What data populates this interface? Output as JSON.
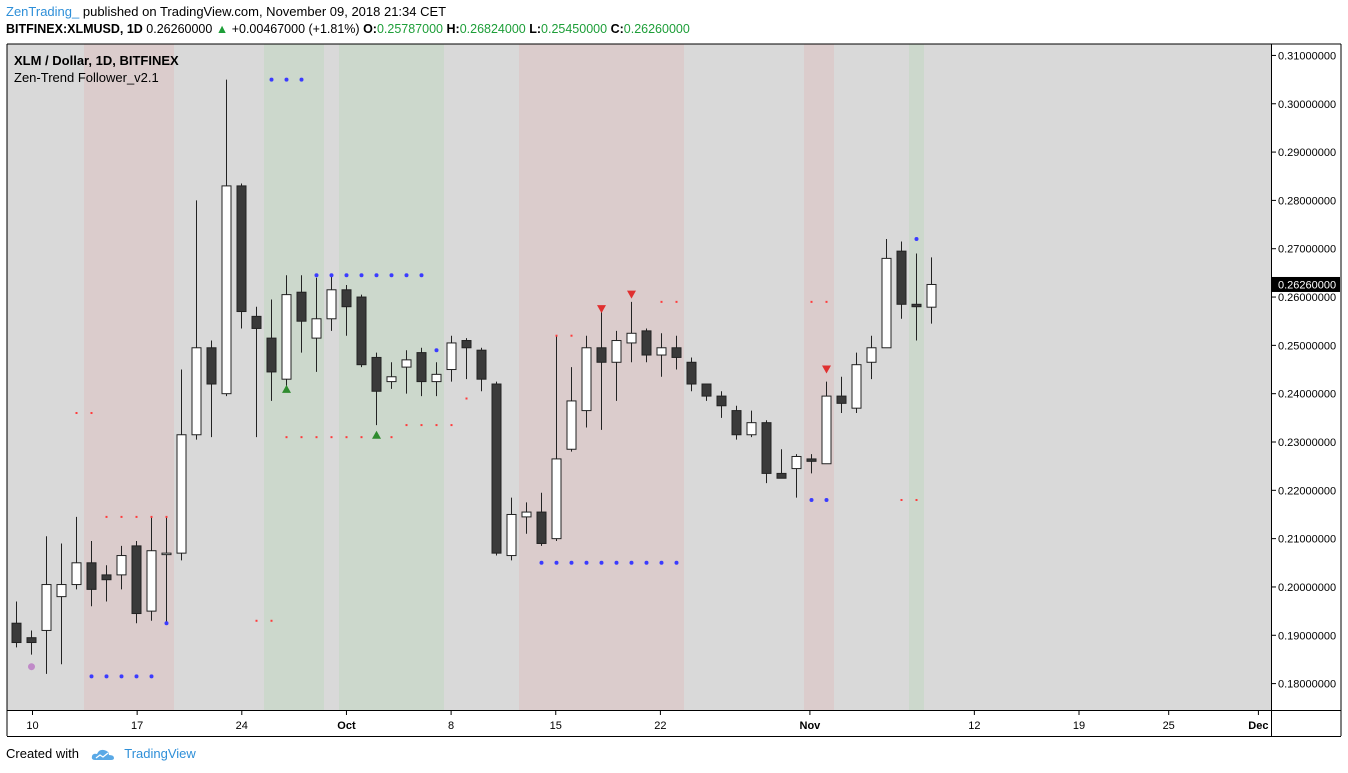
{
  "header": {
    "author": "ZenTrading_",
    "published_text": "published on TradingView.com, November 09, 2018 21:34 CET",
    "symbol": "BITFINEX:XLMUSD, 1D",
    "last": "0.26260000",
    "change": "+0.00467000 (+1.81%)",
    "o_label": "O:",
    "o_value": "0.25787000",
    "h_label": "H:",
    "h_value": "0.26824000",
    "l_label": "L:",
    "l_value": "0.25450000",
    "c_label": "C:",
    "c_value": "0.26260000"
  },
  "legend": {
    "title": "XLM / Dollar, 1D, BITFINEX",
    "indicator": "Zen-Trend Follower_v2.1"
  },
  "footer": {
    "created_with": "Created with",
    "brand": "TradingView"
  },
  "colors": {
    "background": "#d9d9d9",
    "red_zone": "#dbcccc",
    "green_zone": "#ccd8cc",
    "candle_up": "#ffffff",
    "candle_down": "#3a3a3a",
    "blue_dot": "#3b3bff",
    "red_dot": "#ff3b3b",
    "arrow_up": "#2e8b2e",
    "arrow_down": "#e03030",
    "price_label_bg": "#000000"
  },
  "chart_data": {
    "type": "candlestick",
    "title": "XLM / Dollar, 1D, BITFINEX",
    "ylim": [
      0.175,
      0.312
    ],
    "y_ticks": [
      "0.18000000",
      "0.19000000",
      "0.20000000",
      "0.21000000",
      "0.22000000",
      "0.23000000",
      "0.24000000",
      "0.25000000",
      "0.26000000",
      "0.27000000",
      "0.28000000",
      "0.29000000",
      "0.30000000",
      "0.31000000"
    ],
    "last_price_label": "0.26260000",
    "x_ticks": [
      {
        "label": "10",
        "day": 0
      },
      {
        "label": "17",
        "day": 7
      },
      {
        "label": "24",
        "day": 14
      },
      {
        "label": "Oct",
        "day": 21
      },
      {
        "label": "8",
        "day": 28
      },
      {
        "label": "15",
        "day": 35
      },
      {
        "label": "22",
        "day": 42
      },
      {
        "label": "Nov",
        "day": 52
      },
      {
        "label": "12",
        "day": 63
      },
      {
        "label": "19",
        "day": 70
      },
      {
        "label": "25",
        "day": 76
      },
      {
        "label": "Dec",
        "day": 82
      }
    ],
    "candles": [
      {
        "d": "Sep 09",
        "o": 0.1925,
        "h": 0.197,
        "l": 0.1875,
        "c": 0.1885
      },
      {
        "d": "Sep 10",
        "o": 0.1895,
        "h": 0.191,
        "l": 0.186,
        "c": 0.1885
      },
      {
        "d": "Sep 11",
        "o": 0.191,
        "h": 0.2105,
        "l": 0.182,
        "c": 0.2005
      },
      {
        "d": "Sep 12",
        "o": 0.198,
        "h": 0.209,
        "l": 0.184,
        "c": 0.2005
      },
      {
        "d": "Sep 13",
        "o": 0.2005,
        "h": 0.2145,
        "l": 0.1995,
        "c": 0.205
      },
      {
        "d": "Sep 14",
        "o": 0.205,
        "h": 0.2095,
        "l": 0.196,
        "c": 0.1995
      },
      {
        "d": "Sep 15",
        "o": 0.2025,
        "h": 0.2045,
        "l": 0.197,
        "c": 0.2015
      },
      {
        "d": "Sep 16",
        "o": 0.2025,
        "h": 0.2085,
        "l": 0.1995,
        "c": 0.2065
      },
      {
        "d": "Sep 17",
        "o": 0.2085,
        "h": 0.2095,
        "l": 0.1925,
        "c": 0.1945
      },
      {
        "d": "Sep 18",
        "o": 0.195,
        "h": 0.2145,
        "l": 0.193,
        "c": 0.2075
      },
      {
        "d": "Sep 19",
        "o": 0.207,
        "h": 0.2145,
        "l": 0.1925,
        "c": 0.207
      },
      {
        "d": "Sep 20",
        "o": 0.207,
        "h": 0.245,
        "l": 0.2055,
        "c": 0.2315
      },
      {
        "d": "Sep 21",
        "o": 0.2315,
        "h": 0.28,
        "l": 0.2305,
        "c": 0.2495
      },
      {
        "d": "Sep 22",
        "o": 0.2495,
        "h": 0.251,
        "l": 0.231,
        "c": 0.242
      },
      {
        "d": "Sep 23",
        "o": 0.24,
        "h": 0.305,
        "l": 0.2395,
        "c": 0.283
      },
      {
        "d": "Sep 24",
        "o": 0.283,
        "h": 0.2835,
        "l": 0.2535,
        "c": 0.257
      },
      {
        "d": "Sep 25",
        "o": 0.256,
        "h": 0.258,
        "l": 0.231,
        "c": 0.2535
      },
      {
        "d": "Sep 26",
        "o": 0.2515,
        "h": 0.2595,
        "l": 0.2385,
        "c": 0.2445
      },
      {
        "d": "Sep 27",
        "o": 0.243,
        "h": 0.2645,
        "l": 0.241,
        "c": 0.2605
      },
      {
        "d": "Sep 28",
        "o": 0.261,
        "h": 0.2645,
        "l": 0.2485,
        "c": 0.255
      },
      {
        "d": "Sep 29",
        "o": 0.2515,
        "h": 0.264,
        "l": 0.2445,
        "c": 0.2555
      },
      {
        "d": "Sep 30",
        "o": 0.2555,
        "h": 0.2645,
        "l": 0.253,
        "c": 0.2615
      },
      {
        "d": "Oct 01",
        "o": 0.2615,
        "h": 0.2625,
        "l": 0.252,
        "c": 0.258
      },
      {
        "d": "Oct 02",
        "o": 0.26,
        "h": 0.2605,
        "l": 0.2455,
        "c": 0.246
      },
      {
        "d": "Oct 03",
        "o": 0.2475,
        "h": 0.2485,
        "l": 0.2335,
        "c": 0.2405
      },
      {
        "d": "Oct 04",
        "o": 0.2425,
        "h": 0.2465,
        "l": 0.241,
        "c": 0.2435
      },
      {
        "d": "Oct 05",
        "o": 0.2455,
        "h": 0.249,
        "l": 0.24,
        "c": 0.247
      },
      {
        "d": "Oct 06",
        "o": 0.2485,
        "h": 0.2495,
        "l": 0.2395,
        "c": 0.2425
      },
      {
        "d": "Oct 07",
        "o": 0.2425,
        "h": 0.2465,
        "l": 0.2395,
        "c": 0.244
      },
      {
        "d": "Oct 08",
        "o": 0.245,
        "h": 0.252,
        "l": 0.2425,
        "c": 0.2505
      },
      {
        "d": "Oct 09",
        "o": 0.251,
        "h": 0.2515,
        "l": 0.243,
        "c": 0.2495
      },
      {
        "d": "Oct 10",
        "o": 0.249,
        "h": 0.2495,
        "l": 0.2405,
        "c": 0.243
      },
      {
        "d": "Oct 11",
        "o": 0.242,
        "h": 0.2425,
        "l": 0.2065,
        "c": 0.207
      },
      {
        "d": "Oct 12",
        "o": 0.2065,
        "h": 0.2185,
        "l": 0.2055,
        "c": 0.215
      },
      {
        "d": "Oct 13",
        "o": 0.2145,
        "h": 0.2175,
        "l": 0.211,
        "c": 0.2155
      },
      {
        "d": "Oct 14",
        "o": 0.2155,
        "h": 0.2195,
        "l": 0.2085,
        "c": 0.209
      },
      {
        "d": "Oct 15",
        "o": 0.21,
        "h": 0.252,
        "l": 0.2095,
        "c": 0.2265
      },
      {
        "d": "Oct 16",
        "o": 0.2285,
        "h": 0.2455,
        "l": 0.228,
        "c": 0.2385
      },
      {
        "d": "Oct 17",
        "o": 0.2365,
        "h": 0.252,
        "l": 0.233,
        "c": 0.2495
      },
      {
        "d": "Oct 18",
        "o": 0.2495,
        "h": 0.2575,
        "l": 0.2325,
        "c": 0.2465
      },
      {
        "d": "Oct 19",
        "o": 0.2465,
        "h": 0.253,
        "l": 0.2385,
        "c": 0.251
      },
      {
        "d": "Oct 20",
        "o": 0.2505,
        "h": 0.259,
        "l": 0.2465,
        "c": 0.2525
      },
      {
        "d": "Oct 21",
        "o": 0.253,
        "h": 0.2535,
        "l": 0.2465,
        "c": 0.248
      },
      {
        "d": "Oct 22",
        "o": 0.248,
        "h": 0.2525,
        "l": 0.2435,
        "c": 0.2495
      },
      {
        "d": "Oct 23",
        "o": 0.2495,
        "h": 0.252,
        "l": 0.245,
        "c": 0.2475
      },
      {
        "d": "Oct 24",
        "o": 0.2465,
        "h": 0.2475,
        "l": 0.2405,
        "c": 0.242
      },
      {
        "d": "Oct 25",
        "o": 0.242,
        "h": 0.242,
        "l": 0.2385,
        "c": 0.2395
      },
      {
        "d": "Oct 26",
        "o": 0.2395,
        "h": 0.2405,
        "l": 0.235,
        "c": 0.2375
      },
      {
        "d": "Oct 27",
        "o": 0.2365,
        "h": 0.2375,
        "l": 0.2305,
        "c": 0.2315
      },
      {
        "d": "Oct 28",
        "o": 0.2315,
        "h": 0.2365,
        "l": 0.231,
        "c": 0.234
      },
      {
        "d": "Oct 29",
        "o": 0.234,
        "h": 0.2345,
        "l": 0.2215,
        "c": 0.2235
      },
      {
        "d": "Oct 30",
        "o": 0.2235,
        "h": 0.2285,
        "l": 0.2225,
        "c": 0.2225
      },
      {
        "d": "Oct 31",
        "o": 0.2245,
        "h": 0.2275,
        "l": 0.2185,
        "c": 0.227
      },
      {
        "d": "Nov 01",
        "o": 0.2265,
        "h": 0.2275,
        "l": 0.2235,
        "c": 0.226
      },
      {
        "d": "Nov 02",
        "o": 0.2255,
        "h": 0.2425,
        "l": 0.2255,
        "c": 0.2395
      },
      {
        "d": "Nov 03",
        "o": 0.2395,
        "h": 0.2435,
        "l": 0.236,
        "c": 0.238
      },
      {
        "d": "Nov 04",
        "o": 0.237,
        "h": 0.2485,
        "l": 0.236,
        "c": 0.246
      },
      {
        "d": "Nov 05",
        "o": 0.2465,
        "h": 0.252,
        "l": 0.243,
        "c": 0.2495
      },
      {
        "d": "Nov 06",
        "o": 0.2495,
        "h": 0.272,
        "l": 0.2495,
        "c": 0.268
      },
      {
        "d": "Nov 07",
        "o": 0.2695,
        "h": 0.2715,
        "l": 0.2555,
        "c": 0.2585
      },
      {
        "d": "Nov 08",
        "o": 0.2585,
        "h": 0.269,
        "l": 0.251,
        "c": 0.258
      },
      {
        "d": "Nov 09",
        "o": 0.2579,
        "h": 0.2682,
        "l": 0.2545,
        "c": 0.2626
      }
    ],
    "zones": [
      {
        "color": "red",
        "from": 5,
        "to": 10
      },
      {
        "color": "green",
        "from": 17,
        "to": 20
      },
      {
        "color": "green",
        "from": 22,
        "to": 28
      },
      {
        "color": "red",
        "from": 34,
        "to": 44
      },
      {
        "color": "red",
        "from": 53,
        "to": 54
      },
      {
        "color": "green",
        "from": 60,
        "to": 60
      }
    ],
    "blue_dots": [
      {
        "i": 5,
        "v": 0.1815
      },
      {
        "i": 6,
        "v": 0.1815
      },
      {
        "i": 7,
        "v": 0.1815
      },
      {
        "i": 8,
        "v": 0.1815
      },
      {
        "i": 9,
        "v": 0.1815
      },
      {
        "i": 10,
        "v": 0.1925
      },
      {
        "i": 17,
        "v": 0.305
      },
      {
        "i": 18,
        "v": 0.305
      },
      {
        "i": 19,
        "v": 0.305
      },
      {
        "i": 20,
        "v": 0.2645
      },
      {
        "i": 21,
        "v": 0.2645
      },
      {
        "i": 22,
        "v": 0.2645
      },
      {
        "i": 23,
        "v": 0.2645
      },
      {
        "i": 24,
        "v": 0.2645
      },
      {
        "i": 25,
        "v": 0.2645
      },
      {
        "i": 26,
        "v": 0.2645
      },
      {
        "i": 27,
        "v": 0.2645
      },
      {
        "i": 28,
        "v": 0.249
      },
      {
        "i": 35,
        "v": 0.205
      },
      {
        "i": 36,
        "v": 0.205
      },
      {
        "i": 37,
        "v": 0.205
      },
      {
        "i": 38,
        "v": 0.205
      },
      {
        "i": 39,
        "v": 0.205
      },
      {
        "i": 40,
        "v": 0.205
      },
      {
        "i": 41,
        "v": 0.205
      },
      {
        "i": 42,
        "v": 0.205
      },
      {
        "i": 43,
        "v": 0.205
      },
      {
        "i": 44,
        "v": 0.205
      },
      {
        "i": 53,
        "v": 0.218
      },
      {
        "i": 54,
        "v": 0.218
      },
      {
        "i": 60,
        "v": 0.272
      }
    ],
    "red_dots": [
      {
        "i": 4,
        "v": 0.236
      },
      {
        "i": 5,
        "v": 0.236
      },
      {
        "i": 6,
        "v": 0.2145
      },
      {
        "i": 7,
        "v": 0.2145
      },
      {
        "i": 8,
        "v": 0.2145
      },
      {
        "i": 9,
        "v": 0.2145
      },
      {
        "i": 10,
        "v": 0.2145
      },
      {
        "i": 16,
        "v": 0.193
      },
      {
        "i": 17,
        "v": 0.193
      },
      {
        "i": 18,
        "v": 0.231
      },
      {
        "i": 19,
        "v": 0.231
      },
      {
        "i": 20,
        "v": 0.231
      },
      {
        "i": 21,
        "v": 0.231
      },
      {
        "i": 22,
        "v": 0.231
      },
      {
        "i": 23,
        "v": 0.231
      },
      {
        "i": 24,
        "v": 0.231
      },
      {
        "i": 25,
        "v": 0.231
      },
      {
        "i": 26,
        "v": 0.2335
      },
      {
        "i": 27,
        "v": 0.2335
      },
      {
        "i": 28,
        "v": 0.2335
      },
      {
        "i": 29,
        "v": 0.2335
      },
      {
        "i": 30,
        "v": 0.239
      },
      {
        "i": 36,
        "v": 0.252
      },
      {
        "i": 37,
        "v": 0.252
      },
      {
        "i": 43,
        "v": 0.259
      },
      {
        "i": 44,
        "v": 0.259
      },
      {
        "i": 53,
        "v": 0.259
      },
      {
        "i": 54,
        "v": 0.259
      },
      {
        "i": 59,
        "v": 0.218
      },
      {
        "i": 60,
        "v": 0.218
      }
    ],
    "up_arrows": [
      {
        "i": 18,
        "v": 0.241
      },
      {
        "i": 24,
        "v": 0.2315
      }
    ],
    "down_arrows": [
      {
        "i": 39,
        "v": 0.2575
      },
      {
        "i": 41,
        "v": 0.2605
      },
      {
        "i": 54,
        "v": 0.245
      }
    ],
    "purple_dot": {
      "i": 1,
      "v": 0.1835
    }
  }
}
